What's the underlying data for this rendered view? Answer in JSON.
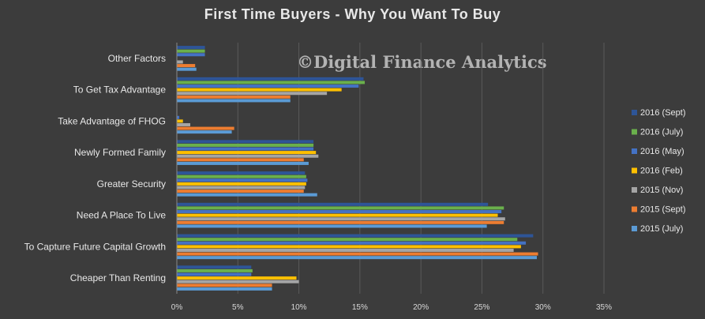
{
  "chart_data": {
    "type": "bar",
    "orientation": "horizontal",
    "title": "First Time Buyers - Why You Want To Buy",
    "watermark": "©Digital Finance Analytics",
    "categories": [
      "Other Factors",
      "To Get Tax Advantage",
      "Take Advantage of FHOG",
      "Newly Formed Family",
      "Greater Security",
      "Need A Place To Live",
      "To Capture Future Capital Growth",
      "Cheaper Than Renting"
    ],
    "series": [
      {
        "name": "2016 (Sept)",
        "color": "#2e5597",
        "values": [
          2.3,
          15.3,
          0.0,
          11.2,
          10.5,
          25.5,
          29.2,
          6.1
        ]
      },
      {
        "name": "2016 (July)",
        "color": "#6ab04c",
        "values": [
          2.3,
          15.4,
          0.0,
          11.2,
          10.6,
          26.8,
          27.9,
          6.2
        ]
      },
      {
        "name": "2016 (May)",
        "color": "#4472c4",
        "values": [
          2.3,
          14.9,
          0.2,
          11.2,
          10.7,
          26.6,
          28.6,
          6.1
        ]
      },
      {
        "name": "2016 (Feb)",
        "color": "#ffc000",
        "values": [
          0.0,
          13.5,
          0.5,
          11.4,
          10.6,
          26.3,
          28.2,
          9.8
        ]
      },
      {
        "name": "2015 (Nov)",
        "color": "#a5a5a5",
        "values": [
          0.5,
          12.3,
          1.1,
          11.6,
          10.5,
          26.9,
          27.6,
          10.0
        ]
      },
      {
        "name": "2015 (Sept)",
        "color": "#ed7d31",
        "values": [
          1.5,
          9.3,
          4.7,
          10.4,
          10.4,
          26.8,
          29.6,
          7.8
        ]
      },
      {
        "name": "2015 (July)",
        "color": "#5b9bd5",
        "values": [
          1.6,
          9.3,
          4.5,
          10.8,
          11.5,
          25.4,
          29.5,
          7.8
        ]
      }
    ],
    "xlim": [
      0,
      35
    ],
    "xticks": [
      "0%",
      "5%",
      "10%",
      "15%",
      "20%",
      "25%",
      "30%",
      "35%"
    ],
    "grid": true,
    "legend_position": "right"
  }
}
